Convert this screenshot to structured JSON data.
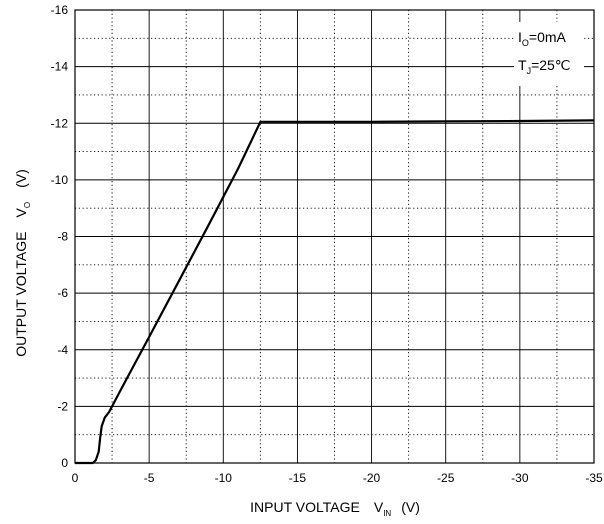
{
  "chart_data": {
    "type": "line",
    "xlabel": {
      "main": "INPUT VOLTAGE",
      "symbol": "V",
      "sub": "IN",
      "unit": "(V)"
    },
    "ylabel": {
      "main": "OUTPUT VOLTAGE",
      "symbol": "V",
      "sub": "O",
      "unit": "(V)"
    },
    "xlim": [
      0,
      -35
    ],
    "ylim": [
      0,
      -16
    ],
    "x_ticks": [
      0,
      -5,
      -10,
      -15,
      -20,
      -25,
      -30,
      -35
    ],
    "x_tick_labels": [
      "0",
      "-5",
      "-10",
      "-15",
      "-20",
      "-25",
      "-30",
      "-35"
    ],
    "y_ticks": [
      0,
      -2,
      -4,
      -6,
      -8,
      -10,
      -12,
      -14,
      -16
    ],
    "y_tick_labels": [
      "0",
      "-2",
      "-4",
      "-6",
      "-8",
      "-10",
      "-12",
      "-14",
      "-16"
    ],
    "grid": true,
    "conditions": [
      {
        "symbol": "I",
        "sub": "O",
        "value": "=0mA"
      },
      {
        "symbol": "T",
        "sub": "J",
        "value": "=25℃"
      }
    ],
    "series": [
      {
        "x": [
          0,
          -1.2,
          -1.4,
          -1.6,
          -1.7,
          -1.8,
          -2.0,
          -2.3,
          -3,
          -5,
          -7,
          -9,
          -11,
          -12.5,
          -13,
          -15,
          -20,
          -25,
          -30,
          -35
        ],
        "y": [
          0,
          0,
          -0.1,
          -0.4,
          -0.9,
          -1.3,
          -1.6,
          -1.8,
          -2.5,
          -4.45,
          -6.42,
          -8.4,
          -10.4,
          -12.05,
          -12.05,
          -12.05,
          -12.05,
          -12.07,
          -12.08,
          -12.1
        ]
      }
    ]
  }
}
